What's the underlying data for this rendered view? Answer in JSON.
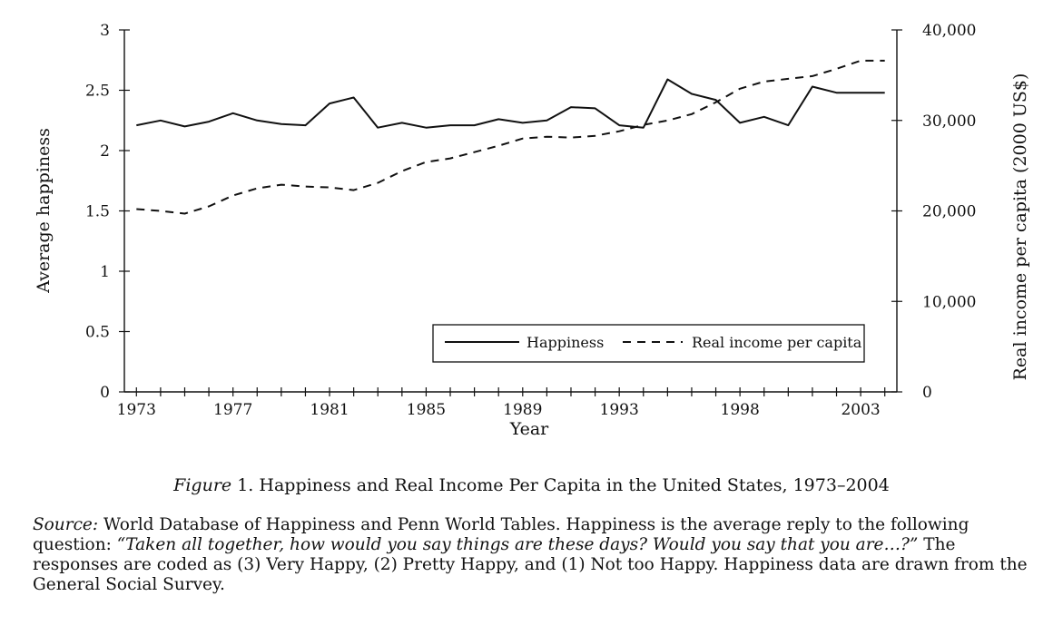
{
  "chart_data": {
    "type": "line",
    "title": "",
    "xlabel": "Year",
    "ylabel_left": "Average happiness",
    "ylabel_right": "Real income per capita (2000 US$)",
    "x_ticks": [
      "1973",
      "1977",
      "1981",
      "1985",
      "1989",
      "1993",
      "1998",
      "2003"
    ],
    "y_left_ticks": [
      "0",
      "0.5",
      "1",
      "1.5",
      "2",
      "2.5",
      "3"
    ],
    "y_right_ticks": [
      "0",
      "10,000",
      "20,000",
      "30,000",
      "40,000"
    ],
    "ylim_left": [
      0,
      3
    ],
    "ylim_right": [
      0,
      40000
    ],
    "xlim": [
      1972.5,
      2004.5
    ],
    "legend_placement": "lower-right",
    "series": [
      {
        "name": "Happiness",
        "axis": "left",
        "style": "solid",
        "color": "#111111",
        "x": [
          1973,
          1974,
          1975,
          1976,
          1977,
          1978,
          1979,
          1980,
          1981,
          1982,
          1983,
          1984,
          1985,
          1986,
          1987,
          1988,
          1989,
          1990,
          1991,
          1992,
          1993,
          1994,
          1995,
          1996,
          1997,
          1998,
          1999,
          2000,
          2001,
          2002,
          2003,
          2004
        ],
        "y": [
          2.21,
          2.25,
          2.2,
          2.24,
          2.31,
          2.25,
          2.22,
          2.21,
          2.39,
          2.44,
          2.19,
          2.23,
          2.19,
          2.21,
          2.21,
          2.26,
          2.23,
          2.25,
          2.36,
          2.35,
          2.21,
          2.19,
          2.59,
          2.47,
          2.42,
          2.23,
          2.28,
          2.21,
          2.53,
          2.48,
          2.48,
          2.48
        ]
      },
      {
        "name": "Real income per capita",
        "axis": "right",
        "style": "dashed",
        "color": "#111111",
        "x": [
          1973,
          1974,
          1975,
          1976,
          1977,
          1978,
          1979,
          1980,
          1981,
          1982,
          1983,
          1984,
          1985,
          1986,
          1987,
          1988,
          1989,
          1990,
          1991,
          1992,
          1993,
          1994,
          1995,
          1996,
          1997,
          1998,
          1999,
          2000,
          2001,
          2002,
          2003,
          2004
        ],
        "y": [
          20200,
          20000,
          19700,
          20500,
          21700,
          22500,
          22900,
          22700,
          22600,
          22300,
          23100,
          24400,
          25400,
          25800,
          26500,
          27200,
          28000,
          28200,
          28100,
          28300,
          28800,
          29500,
          30000,
          30700,
          32000,
          33500,
          34300,
          34600,
          34900,
          35700,
          36600,
          36600
        ]
      }
    ]
  },
  "caption": {
    "figure_label": "Figure",
    "text": " 1. Happiness and Real Income Per Capita in the United States, 1973–2004"
  },
  "source": {
    "label": "Source:",
    "text_before_quote": " World Database of Happiness and Penn World Tables. Happiness is the average reply to the following question: ",
    "quote": "“Taken all together, how would you say things are these days? Would you say that you are…?”",
    "text_after_quote": " The responses are coded as (3) Very Happy, (2) Pretty Happy, and (1) Not too Happy. Happiness data are drawn from the General Social Survey."
  }
}
